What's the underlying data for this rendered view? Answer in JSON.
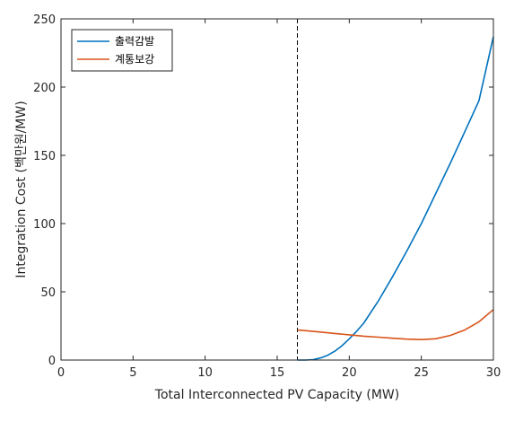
{
  "chart_data": {
    "type": "line",
    "xlabel": "Total Interconnected PV Capacity (MW)",
    "ylabel": "Integration Cost (백만원/MW)",
    "xlim": [
      0,
      30
    ],
    "ylim": [
      0,
      250
    ],
    "xticks": [
      0,
      5,
      10,
      15,
      20,
      25,
      30
    ],
    "yticks": [
      0,
      50,
      100,
      150,
      200,
      250
    ],
    "grid": false,
    "legend_position": "top-left",
    "reference_line": {
      "x": 16.4,
      "style": "dashed",
      "color": "#000000"
    },
    "series": [
      {
        "name": "출력감발",
        "color": "#0072BD",
        "x": [
          16.4,
          17,
          17.5,
          18,
          18.5,
          19,
          19.5,
          20,
          20.5,
          21,
          22,
          23,
          24,
          25,
          26,
          27,
          28,
          29,
          30
        ],
        "y": [
          0,
          0,
          0.3,
          1.5,
          3.5,
          6.5,
          10.5,
          15.5,
          21,
          27,
          43,
          61,
          80,
          100,
          122,
          144,
          167,
          190,
          237
        ]
      },
      {
        "name": "계통보강",
        "color": "#D95319",
        "x": [
          16.4,
          17,
          18,
          19,
          20,
          21,
          22,
          23,
          24,
          25,
          26,
          27,
          28,
          29,
          30
        ],
        "y": [
          22,
          21.5,
          20.5,
          19.5,
          18.5,
          17.5,
          16.8,
          16,
          15.3,
          15,
          15.6,
          18,
          22,
          28,
          37
        ]
      }
    ]
  }
}
